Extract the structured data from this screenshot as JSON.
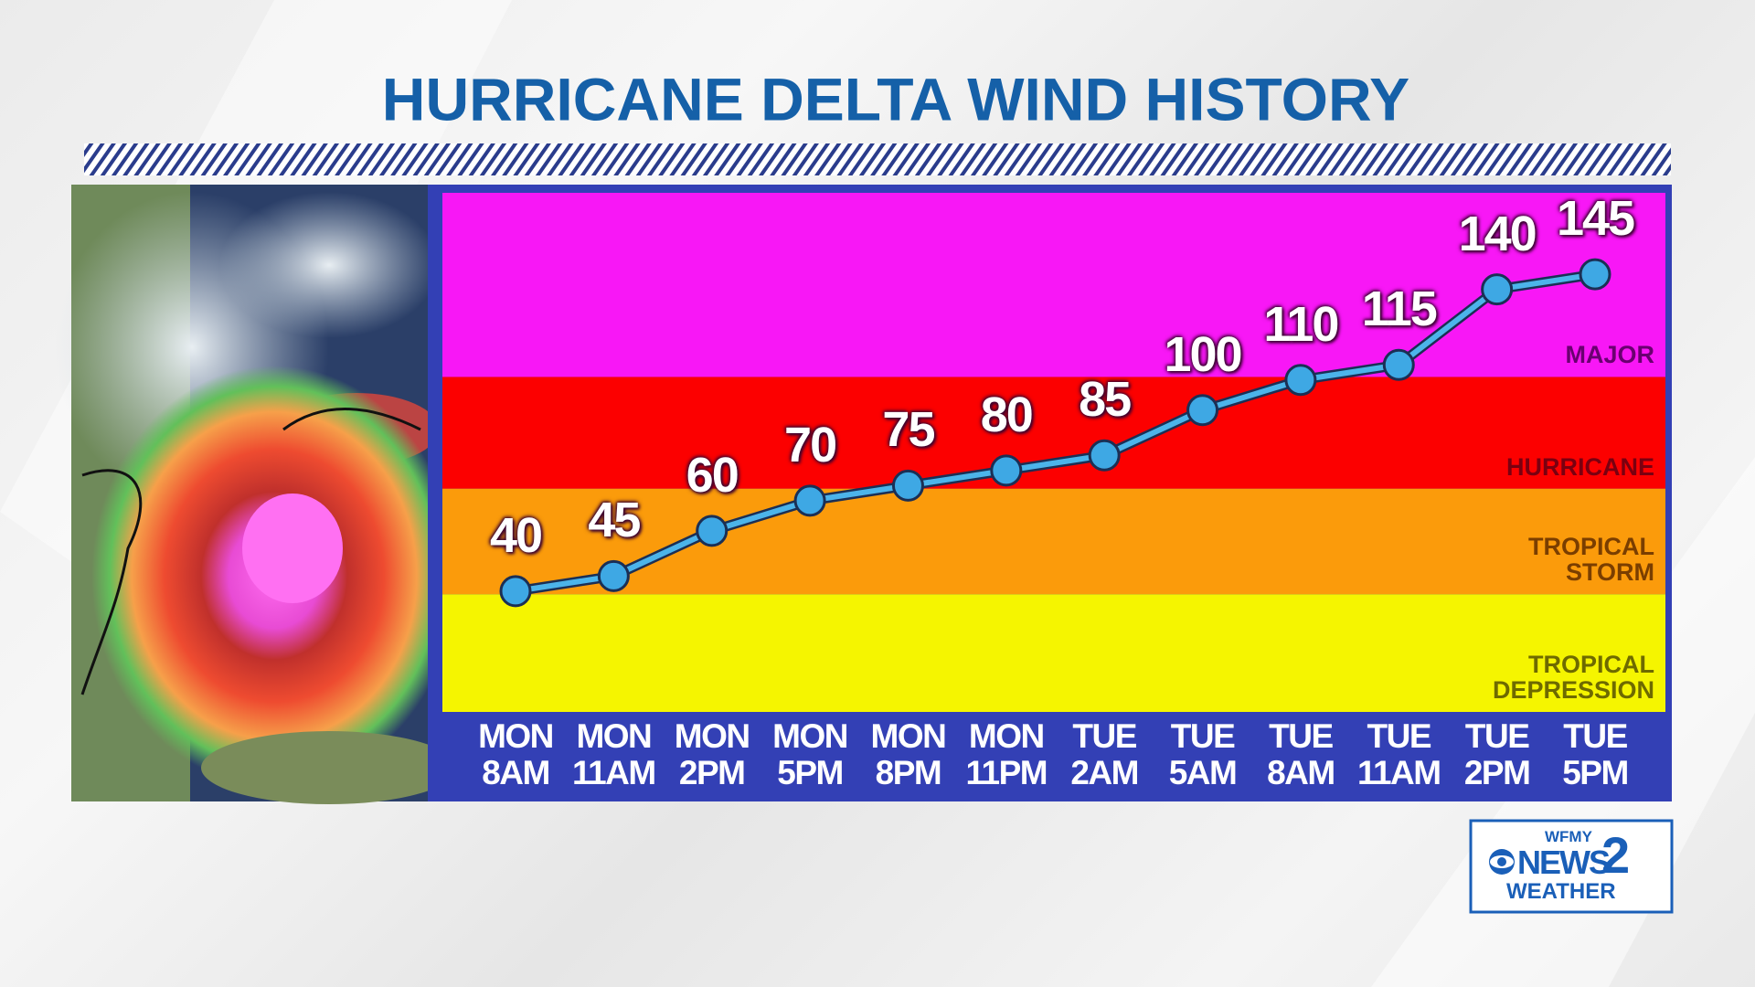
{
  "chart_data": {
    "type": "line",
    "title": "HURRICANE DELTA WIND HISTORY",
    "categories": [
      "MON\n8AM",
      "MON\n11AM",
      "MON\n2PM",
      "MON\n5PM",
      "MON\n8PM",
      "MON\n11PM",
      "TUE\n2AM",
      "TUE\n5AM",
      "TUE\n8AM",
      "TUE\n11AM",
      "TUE\n2PM",
      "TUE\n5PM"
    ],
    "series": [
      {
        "color": "#4cb4ea",
        "values": [
          40,
          45,
          60,
          70,
          75,
          80,
          85,
          100,
          110,
          115,
          140,
          145
        ]
      }
    ],
    "ylim": [
      0,
      172
    ],
    "bands": [
      {
        "label": "TROPICAL\nDEPRESSION",
        "from": 0,
        "to": 39,
        "color": "#f5f500",
        "text_color": "#6e6a00"
      },
      {
        "label": "TROPICAL\nSTORM",
        "from": 39,
        "to": 74,
        "color": "#fb9b0b",
        "text_color": "#7a3e00"
      },
      {
        "label": "HURRICANE",
        "from": 74,
        "to": 111,
        "color": "#fc0000",
        "text_color": "#7a0010"
      },
      {
        "label": "MAJOR",
        "from": 111,
        "to": 172,
        "color": "#f817f6",
        "text_color": "#6a0070"
      }
    ]
  },
  "logo": {
    "station": "WFMY",
    "name": "NEWS",
    "number": "2",
    "tagline": "WEATHER"
  }
}
